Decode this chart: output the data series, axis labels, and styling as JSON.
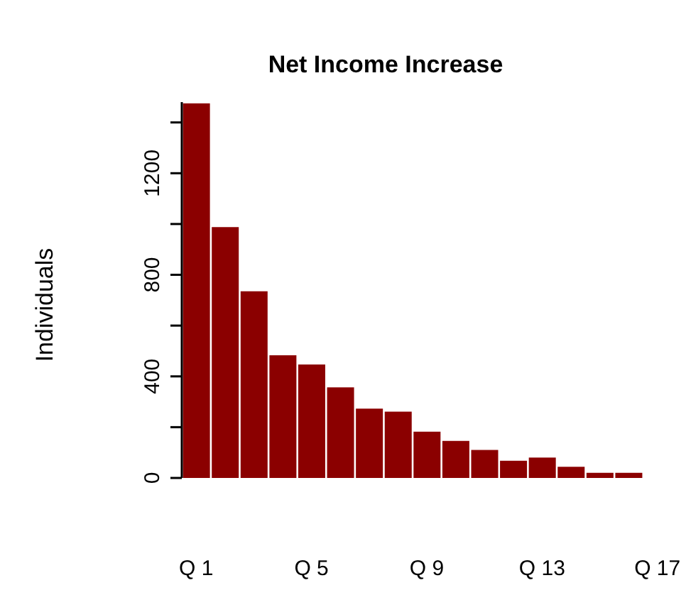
{
  "chart_data": {
    "type": "bar",
    "title": "Net Income Increase",
    "ylabel": "Individuals",
    "categories": [
      "Q 1",
      null,
      null,
      null,
      "Q 5",
      null,
      null,
      null,
      "Q 9",
      null,
      null,
      null,
      "Q 13",
      null,
      null,
      null,
      "Q 17"
    ],
    "values": [
      1475,
      988,
      735,
      483,
      447,
      357,
      273,
      261,
      182,
      146,
      110,
      68,
      80,
      44,
      20,
      20,
      0
    ],
    "color": "#8b0000",
    "ylim": [
      0,
      1480
    ],
    "yticks": [
      0,
      {
        "value": 200,
        "label": null
      },
      400,
      {
        "value": 600,
        "label": null
      },
      800,
      {
        "value": 1000,
        "label": null
      },
      1200,
      {
        "value": 1400,
        "label": null
      }
    ],
    "grid": false,
    "legend": false
  }
}
